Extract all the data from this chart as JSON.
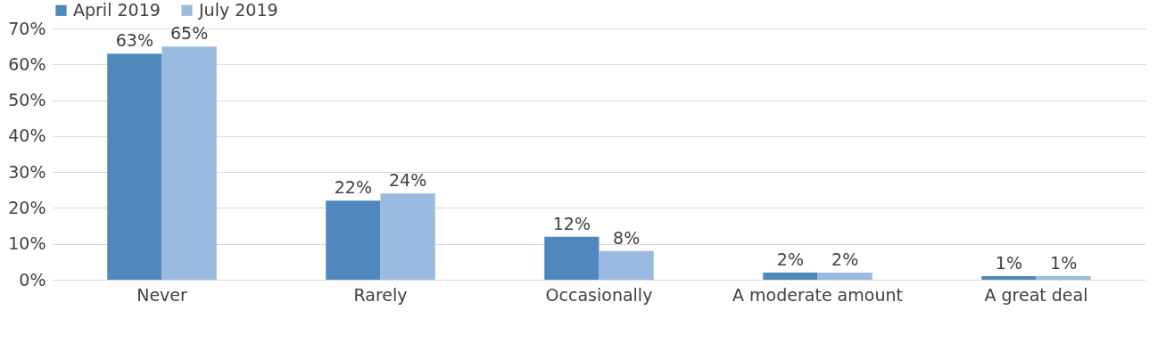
{
  "chart_data": {
    "type": "bar",
    "categories": [
      "Never",
      "Rarely",
      "Occasionally",
      "A moderate amount",
      "A great deal"
    ],
    "series": [
      {
        "name": "April 2019",
        "color": "#4f88bd",
        "values": [
          63,
          22,
          12,
          2,
          1
        ],
        "value_labels": [
          "63%",
          "22%",
          "12%",
          "2%",
          "1%"
        ]
      },
      {
        "name": "July 2019",
        "color": "#9bbadf",
        "values": [
          65,
          24,
          8,
          2,
          1
        ],
        "value_labels": [
          "65%",
          "24%",
          "8%",
          "2%",
          "1%"
        ]
      }
    ],
    "ylim": [
      0,
      70
    ],
    "yticks": [
      {
        "value": 0,
        "label": "0%"
      },
      {
        "value": 10,
        "label": "10%"
      },
      {
        "value": 20,
        "label": "20%"
      },
      {
        "value": 30,
        "label": "30%"
      },
      {
        "value": 40,
        "label": "40%"
      },
      {
        "value": 50,
        "label": "50%"
      },
      {
        "value": 60,
        "label": "60%"
      },
      {
        "value": 70,
        "label": "70%"
      }
    ],
    "grid": "y",
    "legend": "top"
  }
}
